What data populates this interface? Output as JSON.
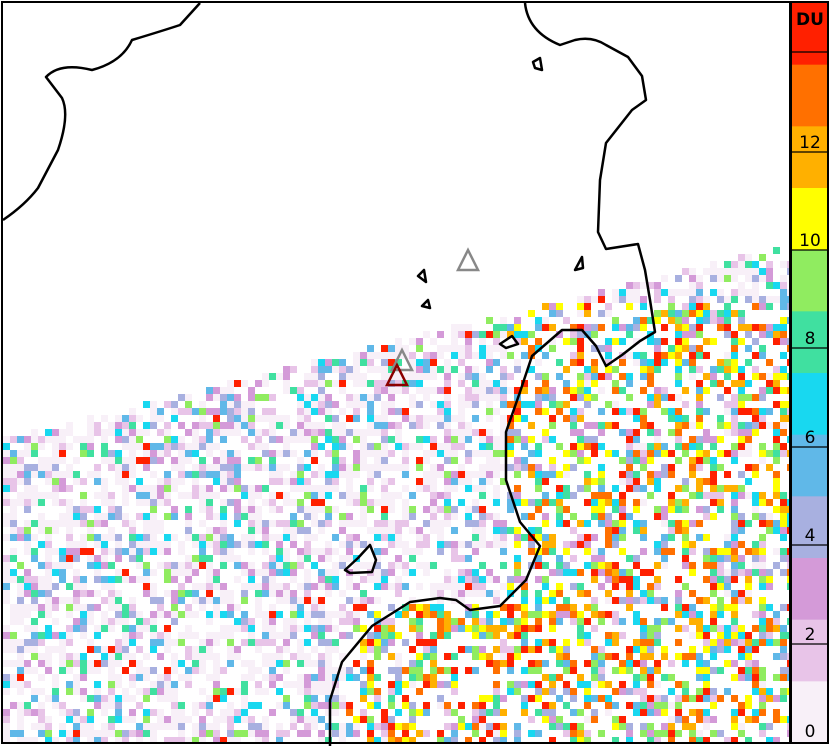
{
  "colorbar": {
    "unit": "DU",
    "ticks": [
      "0",
      "2",
      "4",
      "6",
      "8",
      "10",
      "12"
    ],
    "colors": [
      "#f8f0f8",
      "#e8c4e8",
      "#d49ad8",
      "#a8b0e0",
      "#60b8e8",
      "#18d8f0",
      "#40e0a0",
      "#90ec60",
      "#ffff00",
      "#ffb000",
      "#ff7000",
      "#ff2000"
    ],
    "range": [
      0,
      14
    ]
  },
  "markers": [
    {
      "type": "volcano-triangle",
      "color": "#888888"
    },
    {
      "type": "volcano-triangle",
      "color": "#888888"
    },
    {
      "type": "volcano-triangle",
      "color": "#8b0000"
    }
  ]
}
